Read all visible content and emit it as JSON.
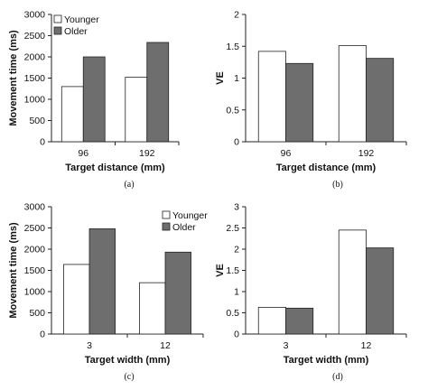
{
  "colors": {
    "younger": "#ffffff",
    "older": "#6e6e6e",
    "axis": "#222222",
    "bar_stroke": "#222222"
  },
  "chart_data": [
    {
      "type": "bar",
      "categories": [
        "96",
        "192"
      ],
      "series": [
        {
          "name": "Younger",
          "values": [
            1300,
            1520
          ]
        },
        {
          "name": "Older",
          "values": [
            2000,
            2340
          ]
        }
      ],
      "xlabel": "Target distance (mm)",
      "ylabel": "Movement time (ms)",
      "ylim": [
        0,
        3000
      ],
      "yticks": [
        "0",
        "500",
        "1000",
        "1500",
        "2000",
        "2500",
        "3000"
      ],
      "panel": "(a)",
      "legend": "top-left",
      "grid": false
    },
    {
      "type": "bar",
      "categories": [
        "96",
        "192"
      ],
      "series": [
        {
          "values": [
            1.42,
            1.51
          ]
        },
        {
          "values": [
            1.23,
            1.31
          ]
        }
      ],
      "xlabel": "Target distance (mm)",
      "ylabel": "VE",
      "ylim": [
        0,
        2
      ],
      "yticks": [
        "0",
        "0.5",
        "1",
        "1.5",
        "2"
      ],
      "panel": "(b)",
      "grid": false
    },
    {
      "type": "bar",
      "categories": [
        "3",
        "12"
      ],
      "series": [
        {
          "name": "Younger",
          "values": [
            1640,
            1210
          ]
        },
        {
          "name": "Older",
          "values": [
            2480,
            1930
          ]
        }
      ],
      "xlabel": "Target width (mm)",
      "ylabel": "Movement time (ms)",
      "ylim": [
        0,
        3000
      ],
      "yticks": [
        "0",
        "500",
        "1000",
        "1500",
        "2000",
        "2500",
        "3000"
      ],
      "panel": "(c)",
      "legend": "top-right",
      "grid": false
    },
    {
      "type": "bar",
      "categories": [
        "3",
        "12"
      ],
      "series": [
        {
          "values": [
            0.63,
            2.45
          ]
        },
        {
          "values": [
            0.61,
            2.03
          ]
        }
      ],
      "xlabel": "Target width (mm)",
      "ylabel": "VE",
      "ylim": [
        0,
        3
      ],
      "yticks": [
        "0",
        "0.5",
        "1",
        "1.5",
        "2",
        "2.5",
        "3"
      ],
      "panel": "(d)",
      "grid": false
    }
  ]
}
